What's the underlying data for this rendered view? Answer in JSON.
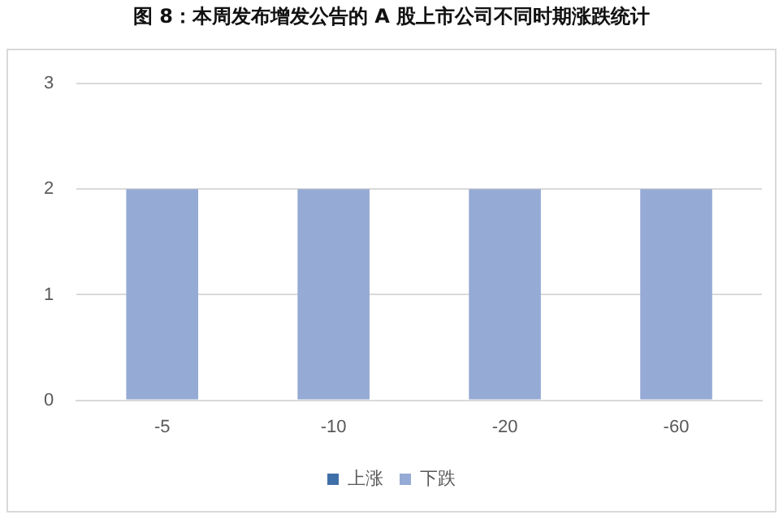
{
  "chart_data": {
    "type": "bar",
    "title": "图 8：本周发布增发公告的 A 股上市公司不同时期涨跌统计",
    "categories": [
      "-5",
      "-10",
      "-20",
      "-60"
    ],
    "stacked": true,
    "series": [
      {
        "name": "上涨",
        "color": "#3f6fa8",
        "values": [
          0,
          0,
          0,
          0
        ]
      },
      {
        "name": "下跌",
        "color": "#95aad4",
        "values": [
          2,
          2,
          2,
          2
        ]
      }
    ],
    "ylim": [
      0,
      3
    ],
    "yticks": [
      0,
      1,
      2,
      3
    ],
    "grid": "y",
    "legend": "bottom"
  }
}
